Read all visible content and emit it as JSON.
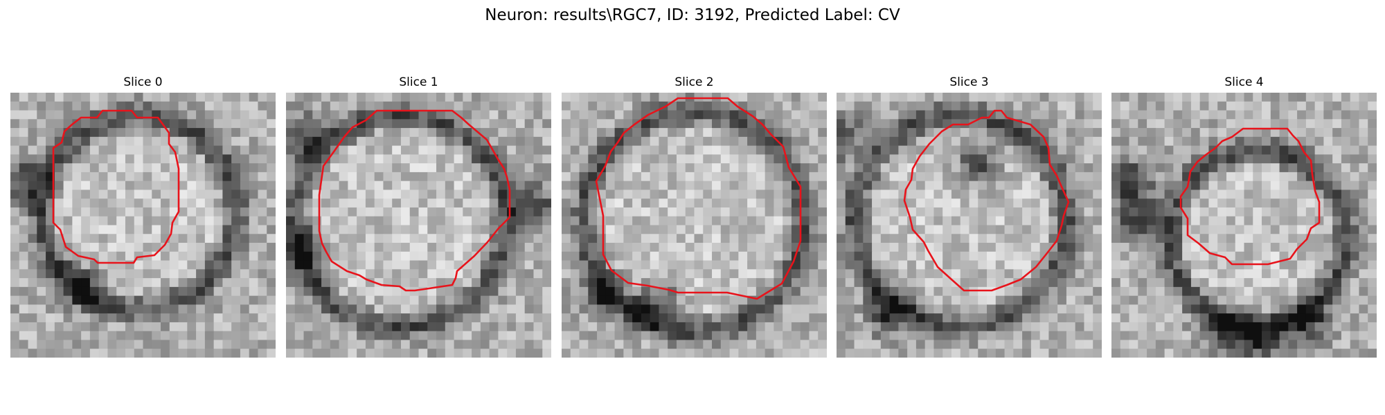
{
  "figure": {
    "title": "Neuron: results\\RGC7, ID: 3192, Predicted Label: CV"
  },
  "panels": [
    {
      "title": "Slice 0"
    },
    {
      "title": "Slice 1"
    },
    {
      "title": "Slice 2"
    },
    {
      "title": "Slice 3"
    },
    {
      "title": "Slice 4"
    }
  ],
  "colors": {
    "contour": "#e8131b",
    "background": "#ffffff"
  }
}
